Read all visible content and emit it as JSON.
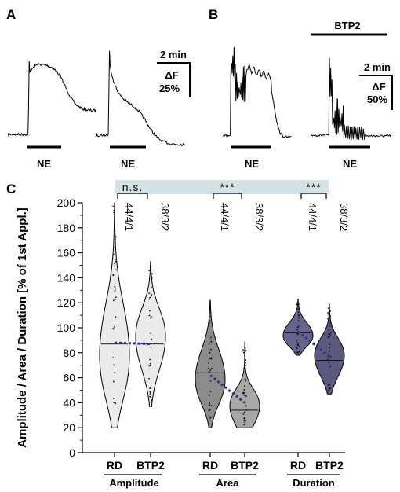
{
  "panels": {
    "a": {
      "letter": "A",
      "stim1": "NE",
      "stim2": "NE",
      "scale_time": "2 min",
      "scale_df": "ΔF",
      "scale_pct": "25%"
    },
    "b": {
      "letter": "B",
      "stim1": "NE",
      "stim2": "NE",
      "drug": "BTP2",
      "scale_time": "2 min",
      "scale_df": "ΔF",
      "scale_pct": "50%"
    },
    "c": {
      "letter": "C"
    }
  },
  "colors": {
    "rd_amplitude": "#ebebeb",
    "btp2_amplitude": "#ebebeb",
    "rd_area": "#8c8c8c",
    "btp2_area": "#a8a8a8",
    "rd_duration": "#64648c",
    "btp2_duration": "#5a5a80",
    "mean_line": "#333388",
    "sig_band": "#d3e3e3"
  },
  "chart_data": {
    "type": "violin",
    "ylabel": "Amplitude / Area / Duration [% of 1st Appl.]",
    "ylim": [
      0,
      200
    ],
    "yticks": [
      "0",
      "20",
      "40",
      "60",
      "80",
      "100",
      "120",
      "140",
      "160",
      "180",
      "200"
    ],
    "grid": false,
    "groups": [
      {
        "label": "Amplitude",
        "significance": "n.s.",
        "conditions": [
          {
            "label": "RD",
            "n": "44/4/1",
            "mean": 88,
            "median": 87,
            "range": [
              20,
              200
            ]
          },
          {
            "label": "BTP2",
            "n": "38/3/2",
            "mean": 87,
            "median": 87,
            "range": [
              37,
              153
            ]
          }
        ]
      },
      {
        "label": "Area",
        "significance": "***",
        "conditions": [
          {
            "label": "RD",
            "n": "44/4/1",
            "mean": 62,
            "median": 64,
            "range": [
              20,
              122
            ]
          },
          {
            "label": "BTP2",
            "n": "38/3/2",
            "mean": 40,
            "median": 34,
            "range": [
              20,
              89
            ]
          }
        ]
      },
      {
        "label": "Duration",
        "significance": "***",
        "conditions": [
          {
            "label": "RD",
            "n": "44/4/1",
            "mean": 97,
            "median": 96,
            "range": [
              78,
              123
            ]
          },
          {
            "label": "BTP2",
            "n": "38/3/2",
            "mean": 77,
            "median": 74,
            "range": [
              47,
              119
            ]
          }
        ]
      }
    ]
  }
}
